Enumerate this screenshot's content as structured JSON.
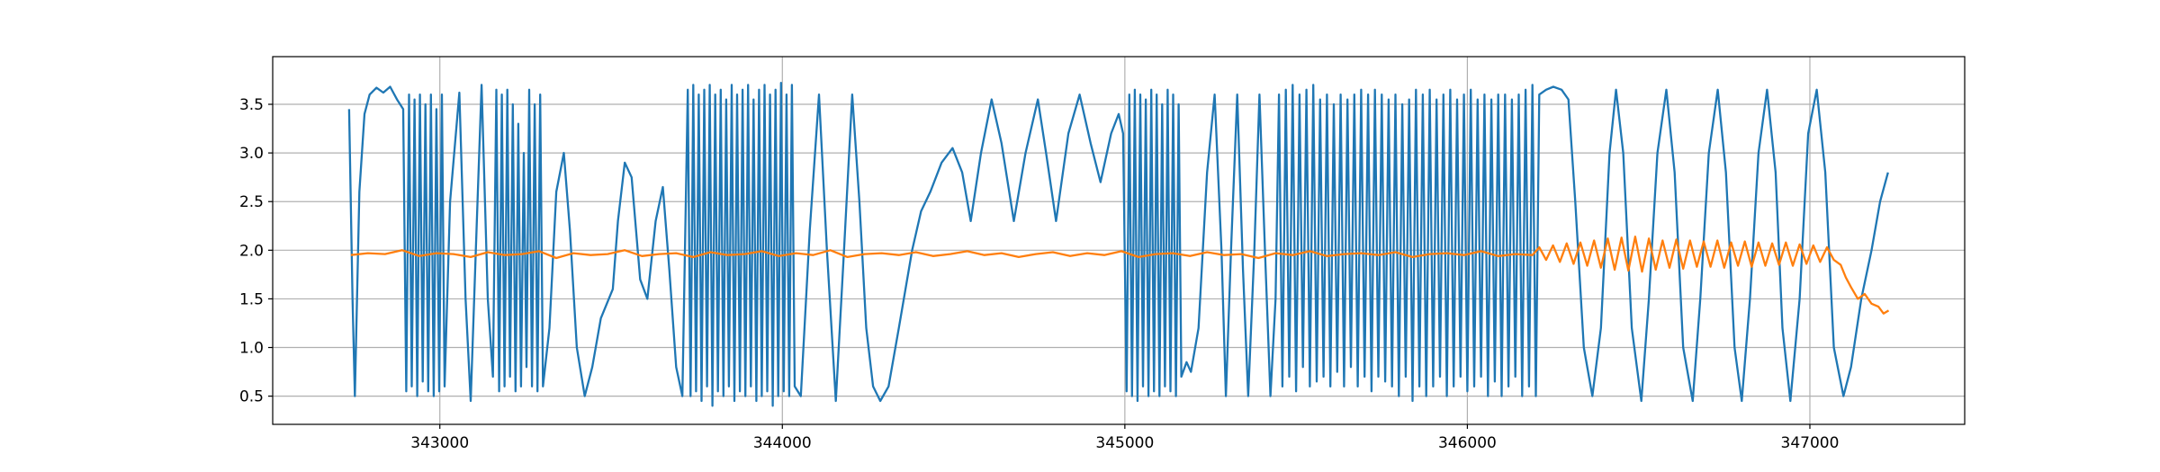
{
  "chart_data": {
    "type": "line",
    "xlim": [
      342512,
      347452
    ],
    "ylim": [
      0.21,
      3.99
    ],
    "xticks": [
      343000,
      344000,
      345000,
      346000,
      347000
    ],
    "yticks": [
      0.5,
      {
        "value": 1,
        "label": "1.0"
      },
      1.5,
      {
        "value": 2,
        "label": "2.0"
      },
      2.5,
      {
        "value": 3,
        "label": "3.0"
      },
      3.5
    ],
    "grid": true,
    "series": [
      {
        "color": "#1f77b4",
        "x": [
          342735,
          342745,
          342752,
          342765,
          342780,
          342795,
          342815,
          342835,
          342855,
          342875,
          342893,
          342902,
          342910,
          342918,
          342926,
          342934,
          342942,
          342950,
          342958,
          342966,
          342974,
          342982,
          342990,
          342998,
          343006,
          343014,
          343030,
          343057,
          343075,
          343090,
          343105,
          343122,
          343140,
          343155,
          343165,
          343173,
          343181,
          343189,
          343197,
          343205,
          343213,
          343221,
          343229,
          343237,
          343245,
          343253,
          343261,
          343269,
          343277,
          343285,
          343293,
          343301,
          343320,
          343340,
          343362,
          343380,
          343400,
          343423,
          343445,
          343470,
          343505,
          343520,
          343540,
          343560,
          343585,
          343606,
          343630,
          343651,
          343670,
          343690,
          343708,
          343724,
          343732,
          343740,
          343748,
          343756,
          343764,
          343772,
          343780,
          343788,
          343796,
          343804,
          343812,
          343820,
          343828,
          343836,
          343844,
          343852,
          343860,
          343868,
          343876,
          343884,
          343892,
          343900,
          343908,
          343916,
          343924,
          343932,
          343940,
          343948,
          343956,
          343964,
          343972,
          343980,
          343988,
          343996,
          344004,
          344012,
          344020,
          344028,
          344036,
          344054,
          344080,
          344107,
          344130,
          344156,
          344180,
          344204,
          344225,
          344245,
          344265,
          344286,
          344310,
          344340,
          344379,
          344405,
          344432,
          344465,
          344497,
          344525,
          344550,
          344580,
          344611,
          344640,
          344676,
          344710,
          344746,
          344770,
          344799,
          344835,
          344868,
          344900,
          344929,
          344960,
          344982,
          344995,
          345005,
          345013,
          345021,
          345029,
          345037,
          345045,
          345053,
          345061,
          345069,
          345077,
          345085,
          345093,
          345101,
          345109,
          345117,
          345125,
          345133,
          345141,
          345149,
          345157,
          345165,
          345180,
          345193,
          345215,
          345240,
          345262,
          345282,
          345295,
          345310,
          345328,
          345345,
          345360,
          345378,
          345393,
          345410,
          345425,
          345440,
          345450,
          345460,
          345470,
          345480,
          345490,
          345500,
          345510,
          345520,
          345530,
          345540,
          345550,
          345560,
          345570,
          345580,
          345590,
          345600,
          345610,
          345620,
          345630,
          345640,
          345650,
          345660,
          345670,
          345680,
          345690,
          345700,
          345710,
          345720,
          345730,
          345740,
          345750,
          345760,
          345770,
          345780,
          345790,
          345800,
          345810,
          345820,
          345830,
          345840,
          345850,
          345860,
          345870,
          345880,
          345890,
          345900,
          345910,
          345920,
          345930,
          345940,
          345950,
          345960,
          345970,
          345980,
          345990,
          346000,
          346010,
          346020,
          346030,
          346040,
          346050,
          346060,
          346070,
          346080,
          346090,
          346100,
          346110,
          346120,
          346130,
          346140,
          346150,
          346160,
          346170,
          346180,
          346190,
          346200,
          346210,
          346230,
          346251,
          346275,
          346295,
          346315,
          346340,
          346365,
          346390,
          346415,
          346434,
          346455,
          346480,
          346508,
          346530,
          346555,
          346581,
          346605,
          346630,
          346658,
          346680,
          346705,
          346731,
          346755,
          346780,
          346801,
          346825,
          346850,
          346875,
          346900,
          346920,
          346943,
          346970,
          346995,
          347020,
          347045,
          347070,
          347098,
          347120,
          347150,
          347180,
          347205,
          347228
        ],
        "values": [
          3.45,
          1.5,
          0.5,
          2.6,
          3.4,
          3.6,
          3.67,
          3.62,
          3.68,
          3.55,
          3.45,
          0.55,
          3.6,
          0.6,
          3.55,
          0.5,
          3.6,
          0.65,
          3.5,
          0.55,
          3.6,
          0.5,
          3.45,
          0.55,
          3.6,
          0.6,
          2.5,
          3.62,
          1.5,
          0.45,
          2.0,
          3.7,
          1.5,
          0.7,
          3.65,
          0.55,
          3.6,
          0.6,
          3.65,
          0.7,
          3.5,
          0.55,
          3.3,
          0.6,
          3.0,
          0.8,
          3.65,
          0.6,
          3.5,
          0.55,
          3.6,
          0.6,
          1.2,
          2.6,
          3.0,
          2.2,
          1.0,
          0.5,
          0.8,
          1.3,
          1.6,
          2.3,
          2.9,
          2.75,
          1.7,
          1.5,
          2.3,
          2.65,
          1.8,
          0.8,
          0.5,
          3.65,
          0.5,
          3.7,
          0.55,
          3.6,
          0.45,
          3.65,
          0.6,
          3.7,
          0.4,
          3.6,
          0.55,
          3.65,
          0.5,
          3.55,
          0.6,
          3.7,
          0.45,
          3.6,
          0.55,
          3.65,
          0.5,
          3.7,
          0.6,
          3.55,
          0.45,
          3.65,
          0.5,
          3.7,
          0.55,
          3.6,
          0.4,
          3.65,
          0.5,
          3.72,
          0.55,
          3.6,
          0.5,
          3.7,
          0.6,
          0.5,
          2.2,
          3.6,
          2.0,
          0.45,
          2.0,
          3.6,
          2.5,
          1.2,
          0.6,
          0.45,
          0.6,
          1.2,
          2.0,
          2.4,
          2.6,
          2.9,
          3.05,
          2.8,
          2.3,
          3.0,
          3.55,
          3.1,
          2.3,
          3.0,
          3.55,
          3.0,
          2.3,
          3.2,
          3.6,
          3.1,
          2.7,
          3.2,
          3.4,
          3.2,
          0.55,
          3.6,
          0.5,
          3.65,
          0.45,
          3.6,
          0.6,
          3.55,
          0.5,
          3.65,
          0.55,
          3.6,
          0.5,
          3.5,
          0.6,
          3.65,
          0.55,
          3.6,
          0.5,
          3.5,
          0.7,
          0.85,
          0.75,
          1.2,
          2.8,
          3.6,
          2.0,
          0.5,
          2.0,
          3.6,
          1.8,
          0.5,
          2.0,
          3.6,
          1.9,
          0.5,
          1.5,
          3.6,
          0.6,
          3.65,
          0.7,
          3.7,
          0.55,
          3.6,
          0.8,
          3.65,
          0.6,
          3.7,
          0.65,
          3.55,
          0.7,
          3.6,
          0.6,
          3.5,
          0.75,
          3.6,
          0.6,
          3.55,
          0.8,
          3.6,
          0.6,
          3.65,
          0.7,
          3.6,
          0.55,
          3.65,
          0.7,
          3.6,
          0.65,
          3.55,
          0.6,
          3.6,
          0.5,
          3.5,
          0.7,
          3.55,
          0.45,
          3.65,
          0.6,
          3.6,
          0.5,
          3.65,
          0.6,
          3.55,
          0.7,
          3.6,
          0.5,
          3.65,
          0.6,
          3.55,
          0.7,
          3.6,
          0.55,
          3.65,
          0.6,
          3.55,
          0.7,
          3.6,
          0.5,
          3.55,
          0.65,
          3.6,
          0.5,
          3.6,
          0.6,
          3.55,
          0.7,
          3.6,
          0.5,
          3.65,
          0.6,
          3.7,
          0.5,
          3.6,
          3.65,
          3.68,
          3.65,
          3.55,
          2.5,
          1.0,
          0.5,
          1.2,
          3.0,
          3.65,
          3.0,
          1.2,
          0.45,
          1.5,
          3.0,
          3.65,
          2.8,
          1.0,
          0.45,
          1.5,
          3.0,
          3.65,
          2.8,
          1.0,
          0.45,
          1.5,
          3.0,
          3.65,
          2.8,
          1.2,
          0.45,
          1.5,
          3.2,
          3.65,
          2.8,
          1.0,
          0.5,
          0.8,
          1.5,
          2.0,
          2.5,
          2.8
        ]
      },
      {
        "color": "#ff7f0e",
        "x": [
          342740,
          342790,
          342840,
          342890,
          342940,
          342990,
          343040,
          343090,
          343140,
          343190,
          343240,
          343290,
          343340,
          343390,
          343440,
          343490,
          343540,
          343590,
          343640,
          343690,
          343740,
          343790,
          343840,
          343890,
          343940,
          343990,
          344040,
          344090,
          344140,
          344190,
          344240,
          344290,
          344340,
          344390,
          344440,
          344490,
          344540,
          344590,
          344640,
          344690,
          344740,
          344790,
          344840,
          344890,
          344940,
          344990,
          345040,
          345090,
          345140,
          345190,
          345240,
          345290,
          345340,
          345390,
          345440,
          345490,
          345540,
          345590,
          345640,
          345690,
          345740,
          345790,
          345840,
          345890,
          345940,
          345990,
          346040,
          346090,
          346140,
          346190,
          346210,
          346230,
          346250,
          346270,
          346290,
          346310,
          346330,
          346350,
          346370,
          346390,
          346410,
          346430,
          346450,
          346470,
          346490,
          346510,
          346530,
          346550,
          346570,
          346590,
          346610,
          346630,
          346650,
          346670,
          346690,
          346710,
          346730,
          346750,
          346770,
          346790,
          346810,
          346830,
          346850,
          346870,
          346890,
          346910,
          346930,
          346950,
          346970,
          346990,
          347010,
          347030,
          347050,
          347070,
          347090,
          347105,
          347120,
          347140,
          347160,
          347180,
          347200,
          347215,
          347230
        ],
        "values": [
          1.95,
          1.97,
          1.96,
          2.0,
          1.94,
          1.97,
          1.96,
          1.93,
          1.98,
          1.95,
          1.96,
          1.99,
          1.92,
          1.97,
          1.95,
          1.96,
          2.0,
          1.94,
          1.96,
          1.97,
          1.93,
          1.98,
          1.95,
          1.96,
          1.99,
          1.94,
          1.97,
          1.95,
          2.0,
          1.93,
          1.96,
          1.97,
          1.95,
          1.98,
          1.94,
          1.96,
          1.99,
          1.95,
          1.97,
          1.93,
          1.96,
          1.98,
          1.94,
          1.97,
          1.95,
          1.99,
          1.93,
          1.96,
          1.97,
          1.94,
          1.98,
          1.95,
          1.96,
          1.92,
          1.97,
          1.95,
          1.99,
          1.94,
          1.96,
          1.97,
          1.95,
          1.98,
          1.93,
          1.96,
          1.97,
          1.95,
          1.99,
          1.94,
          1.96,
          1.95,
          2.03,
          1.9,
          2.05,
          1.88,
          2.07,
          1.86,
          2.08,
          1.84,
          2.1,
          1.82,
          2.12,
          1.8,
          2.13,
          1.79,
          2.14,
          1.78,
          2.12,
          1.8,
          2.1,
          1.82,
          2.11,
          1.81,
          2.1,
          1.83,
          2.09,
          1.83,
          2.1,
          1.82,
          2.08,
          1.84,
          2.09,
          1.83,
          2.08,
          1.84,
          2.07,
          1.85,
          2.08,
          1.84,
          2.06,
          1.86,
          2.05,
          1.88,
          2.03,
          1.9,
          1.85,
          1.72,
          1.62,
          1.5,
          1.55,
          1.45,
          1.42,
          1.35,
          1.38
        ]
      }
    ]
  }
}
